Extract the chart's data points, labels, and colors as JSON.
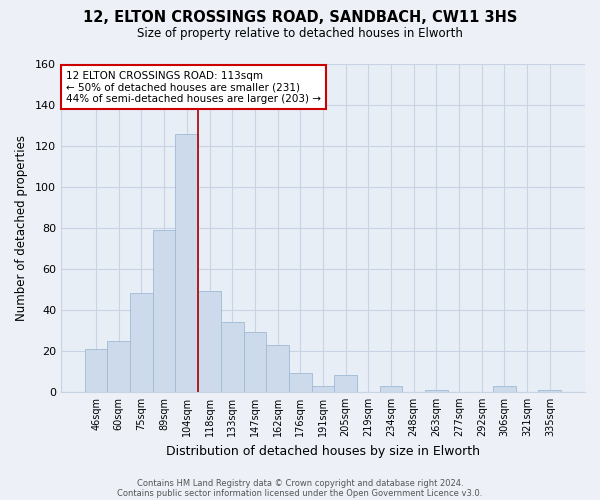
{
  "title1": "12, ELTON CROSSINGS ROAD, SANDBACH, CW11 3HS",
  "title2": "Size of property relative to detached houses in Elworth",
  "xlabel": "Distribution of detached houses by size in Elworth",
  "ylabel": "Number of detached properties",
  "bar_labels": [
    "46sqm",
    "60sqm",
    "75sqm",
    "89sqm",
    "104sqm",
    "118sqm",
    "133sqm",
    "147sqm",
    "162sqm",
    "176sqm",
    "191sqm",
    "205sqm",
    "219sqm",
    "234sqm",
    "248sqm",
    "263sqm",
    "277sqm",
    "292sqm",
    "306sqm",
    "321sqm",
    "335sqm"
  ],
  "bar_heights": [
    21,
    25,
    48,
    79,
    126,
    49,
    34,
    29,
    23,
    9,
    3,
    8,
    0,
    3,
    0,
    1,
    0,
    0,
    3,
    0,
    1
  ],
  "bar_color": "#cddaeb",
  "bar_edge_color": "#9fbbd4",
  "vline_color": "#aa0000",
  "ylim": [
    0,
    160
  ],
  "yticks": [
    0,
    20,
    40,
    60,
    80,
    100,
    120,
    140,
    160
  ],
  "annotation_line1": "12 ELTON CROSSINGS ROAD: 113sqm",
  "annotation_line2": "← 50% of detached houses are smaller (231)",
  "annotation_line3": "44% of semi-detached houses are larger (203) →",
  "footer1": "Contains HM Land Registry data © Crown copyright and database right 2024.",
  "footer2": "Contains public sector information licensed under the Open Government Licence v3.0.",
  "bg_color": "#edf1f7",
  "plot_bg_color": "#e8eef6",
  "grid_color": "#c8d4e4"
}
